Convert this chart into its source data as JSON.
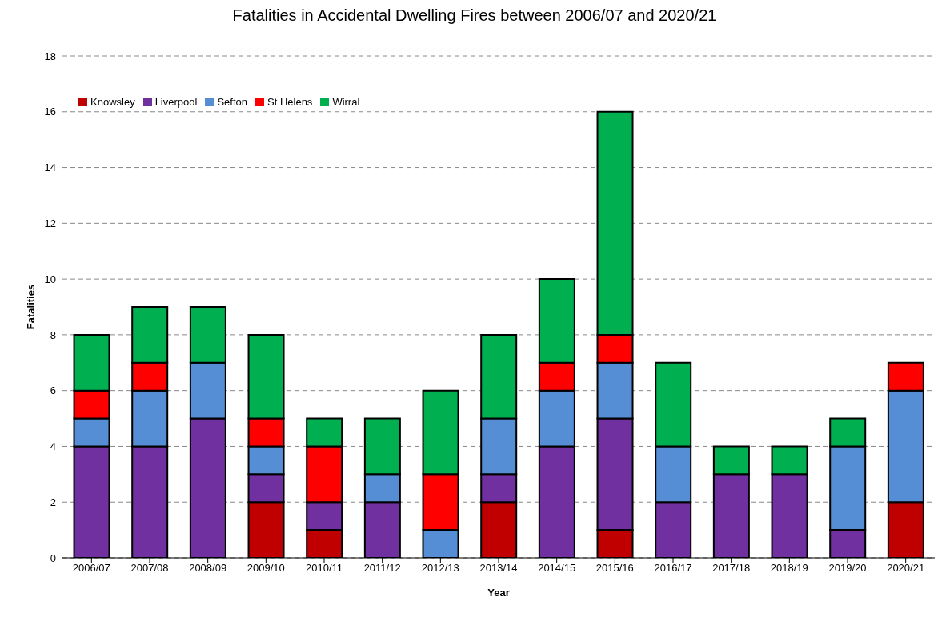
{
  "chart_data": {
    "type": "bar",
    "title": "Fatalities in Accidental Dwelling Fires between 2006/07 and 2020/21",
    "xlabel": "Year",
    "ylabel": "Fatalities",
    "categories": [
      "2006/07",
      "2007/08",
      "2008/09",
      "2009/10",
      "2010/11",
      "2011/12",
      "2012/13",
      "2013/14",
      "2014/15",
      "2015/16",
      "2016/17",
      "2017/18",
      "2018/19",
      "2019/20",
      "2020/21"
    ],
    "stacked": true,
    "series": [
      {
        "name": "Knowsley",
        "color": "#c00000",
        "values": [
          0,
          0,
          0,
          2,
          1,
          0,
          0,
          2,
          0,
          1,
          0,
          0,
          0,
          0,
          2
        ]
      },
      {
        "name": "Liverpool",
        "color": "#7030a0",
        "values": [
          4,
          4,
          5,
          1,
          1,
          2,
          0,
          1,
          4,
          4,
          2,
          3,
          3,
          1,
          0
        ]
      },
      {
        "name": "Sefton",
        "color": "#558ed5",
        "values": [
          1,
          2,
          2,
          1,
          0,
          1,
          1,
          2,
          2,
          2,
          2,
          0,
          0,
          3,
          4
        ]
      },
      {
        "name": "St Helens",
        "color": "#ff0000",
        "values": [
          1,
          1,
          0,
          1,
          2,
          0,
          2,
          0,
          1,
          1,
          0,
          0,
          0,
          0,
          1
        ]
      },
      {
        "name": "Wirral",
        "color": "#00b050",
        "values": [
          2,
          2,
          2,
          3,
          1,
          2,
          3,
          3,
          3,
          8,
          3,
          1,
          1,
          1,
          0
        ]
      }
    ],
    "ylim": [
      0,
      18
    ],
    "yticks": [
      0,
      2,
      4,
      6,
      8,
      10,
      12,
      14,
      16,
      18
    ],
    "grid": "y",
    "legend": "top left"
  }
}
